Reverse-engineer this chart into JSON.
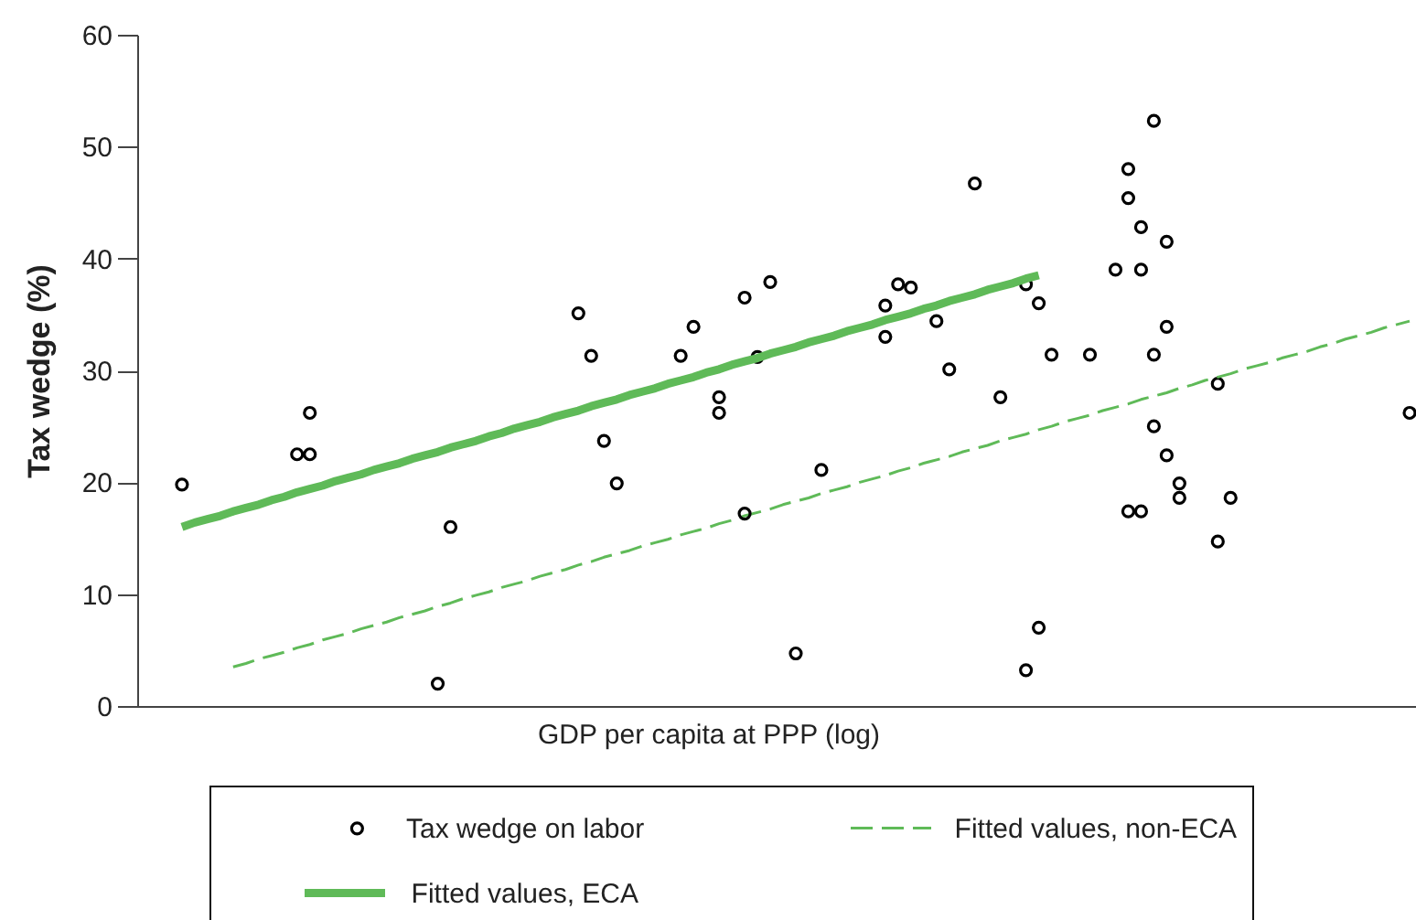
{
  "chart_data": {
    "type": "scatter",
    "xlabel": "GDP per capita at PPP (log)",
    "ylabel": "Tax wedge (%)",
    "ylim": [
      0,
      60
    ],
    "yticks": [
      0,
      10,
      20,
      30,
      40,
      50,
      60
    ],
    "legend": "bottom",
    "marker": "circle",
    "categories": [
      null,
      null,
      null,
      null,
      null,
      null,
      null,
      null,
      null,
      null,
      null,
      null,
      null,
      null,
      null,
      null,
      null,
      null,
      null,
      null,
      null,
      null,
      null,
      null,
      null,
      null,
      null,
      null,
      null,
      null,
      null,
      null,
      null,
      null,
      null,
      null,
      null,
      null,
      null,
      null,
      null,
      null,
      null,
      null,
      null,
      null,
      null,
      null,
      null,
      null,
      null,
      null,
      null,
      null,
      null,
      null,
      null,
      null,
      null,
      null,
      null,
      null,
      null,
      null,
      null,
      null,
      null,
      null,
      null,
      null,
      null,
      null,
      null,
      null,
      null,
      null,
      null,
      null,
      null,
      null,
      null,
      null,
      null,
      null,
      null,
      null,
      null,
      null,
      null,
      null,
      null,
      null,
      null,
      null,
      null,
      null,
      null,
      null,
      null,
      null
    ],
    "series": [
      {
        "name": "Tax wedge on labor",
        "color": "#000000",
        "values": [
          null,
          null,
          null,
          19.8,
          null,
          null,
          null,
          null,
          null,
          null,
          null,
          null,
          22.5,
          26.2,
          null,
          null,
          null,
          null,
          null,
          null,
          null,
          null,
          null,
          2.0,
          16.0,
          null,
          null,
          null,
          null,
          null,
          null,
          null,
          null,
          null,
          35.1,
          31.3,
          23.7,
          19.9,
          null,
          null,
          null,
          null,
          31.3,
          33.9,
          null,
          26.2,
          null,
          36.5,
          31.2,
          37.9,
          null,
          4.7,
          null,
          21.1,
          null,
          null,
          null,
          null,
          33.0,
          37.7,
          37.4,
          null,
          34.4,
          30.1,
          null,
          46.7,
          null,
          27.6,
          null,
          37.7,
          36.0,
          31.4,
          null,
          null,
          31.4,
          null,
          39.0,
          48.0,
          42.8,
          25.0,
          22.4,
          19.9,
          null,
          null,
          28.8,
          18.6,
          null,
          null,
          null,
          null,
          null,
          null,
          null,
          null,
          null,
          null,
          null,
          null,
          null,
          26.2
        ]
      },
      {
        "name": "Fitted values, non-ECA",
        "type": "line",
        "line_style": "dashed",
        "marker": "none",
        "color": "#5fba58",
        "values": [
          null,
          null,
          null,
          null,
          null,
          null,
          null,
          3.5,
          3.8,
          4.2,
          4.5,
          4.8,
          5.2,
          5.5,
          5.9,
          6.2,
          6.5,
          6.9,
          7.2,
          7.5,
          7.9,
          8.2,
          8.5,
          8.9,
          9.2,
          9.6,
          9.9,
          10.2,
          10.6,
          10.9,
          11.2,
          11.6,
          11.9,
          12.2,
          12.6,
          12.9,
          13.3,
          13.6,
          13.9,
          14.3,
          14.6,
          14.9,
          15.3,
          15.6,
          15.9,
          16.3,
          16.6,
          17.0,
          17.3,
          17.6,
          18.0,
          18.3,
          18.6,
          19.0,
          19.3,
          19.6,
          20.0,
          20.3,
          20.6,
          21.0,
          21.3,
          21.7,
          22.0,
          22.3,
          22.7,
          23.0,
          23.3,
          23.7,
          24.0,
          24.3,
          24.7,
          25.0,
          25.4,
          25.7,
          26.0,
          26.4,
          26.7,
          27.0,
          27.4,
          27.7,
          28.0,
          28.4,
          28.7,
          29.1,
          29.4,
          29.7,
          30.1,
          30.4,
          30.7,
          31.1,
          31.4,
          31.7,
          32.1,
          32.4,
          32.8,
          33.1,
          33.4,
          33.8,
          34.1,
          34.4
        ]
      },
      {
        "name": "Fitted values, ECA",
        "type": "line",
        "line_style": "solid",
        "marker": "none",
        "color": "#5fba58",
        "values": [
          null,
          null,
          null,
          16.0,
          16.4,
          16.7,
          17.0,
          17.4,
          17.7,
          18.0,
          18.4,
          18.7,
          19.1,
          19.4,
          19.7,
          20.1,
          20.4,
          20.7,
          21.1,
          21.4,
          21.7,
          22.1,
          22.4,
          22.7,
          23.1,
          23.4,
          23.7,
          24.1,
          24.4,
          24.8,
          25.1,
          25.4,
          25.8,
          26.1,
          26.4,
          26.8,
          27.1,
          27.4,
          27.8,
          28.1,
          28.4,
          28.8,
          29.1,
          29.4,
          29.8,
          30.1,
          30.5,
          30.8,
          31.1,
          31.5,
          31.8,
          32.1,
          32.5,
          32.8,
          33.1,
          33.5,
          33.8,
          34.1,
          34.5,
          34.8,
          35.1,
          35.5,
          35.8,
          36.2,
          36.5,
          36.8,
          37.2,
          37.5,
          37.8,
          38.2,
          38.5,
          null,
          null,
          null,
          null,
          null,
          null,
          null,
          null,
          null,
          null,
          null,
          null,
          null,
          null,
          null,
          null,
          null,
          null,
          null,
          null,
          null,
          null,
          null,
          null,
          null,
          null,
          null,
          null,
          null
        ]
      },
      {
        "color": "#000000",
        "values": [
          null,
          null,
          null,
          null,
          null,
          null,
          null,
          null,
          null,
          null,
          null,
          null,
          null,
          22.5,
          null,
          null,
          null,
          null,
          null,
          null,
          null,
          null,
          null,
          null,
          null,
          null,
          null,
          null,
          null,
          null,
          null,
          null,
          null,
          null,
          null,
          null,
          null,
          null,
          null,
          null,
          null,
          null,
          null,
          null,
          null,
          27.6,
          null,
          17.2,
          null,
          null,
          null,
          null,
          null,
          null,
          null,
          null,
          null,
          null,
          35.8,
          null,
          null,
          null,
          null,
          null,
          null,
          null,
          null,
          null,
          null,
          3.2,
          7.0,
          null,
          null,
          null,
          null,
          null,
          null,
          45.4,
          39.0,
          52.3,
          41.5,
          18.6,
          null,
          null,
          14.7,
          null,
          null,
          null,
          null,
          null,
          null,
          null,
          null,
          null,
          null,
          null,
          null,
          null,
          null,
          null
        ]
      },
      {
        "color": "#000000",
        "values": [
          null,
          null,
          null,
          null,
          null,
          null,
          null,
          null,
          null,
          null,
          null,
          null,
          null,
          null,
          null,
          null,
          null,
          null,
          null,
          null,
          null,
          null,
          null,
          null,
          null,
          null,
          null,
          null,
          null,
          null,
          null,
          null,
          null,
          null,
          null,
          null,
          null,
          null,
          null,
          null,
          null,
          null,
          null,
          null,
          null,
          null,
          null,
          null,
          null,
          null,
          null,
          null,
          null,
          null,
          null,
          null,
          null,
          null,
          null,
          null,
          null,
          null,
          null,
          null,
          null,
          null,
          null,
          null,
          null,
          null,
          null,
          null,
          null,
          null,
          null,
          null,
          null,
          17.4,
          17.4,
          31.4,
          33.9,
          null,
          null,
          null,
          null,
          null,
          null,
          null,
          null,
          null,
          null,
          null,
          null,
          null,
          null,
          null,
          null,
          null,
          null,
          null
        ]
      }
    ]
  }
}
